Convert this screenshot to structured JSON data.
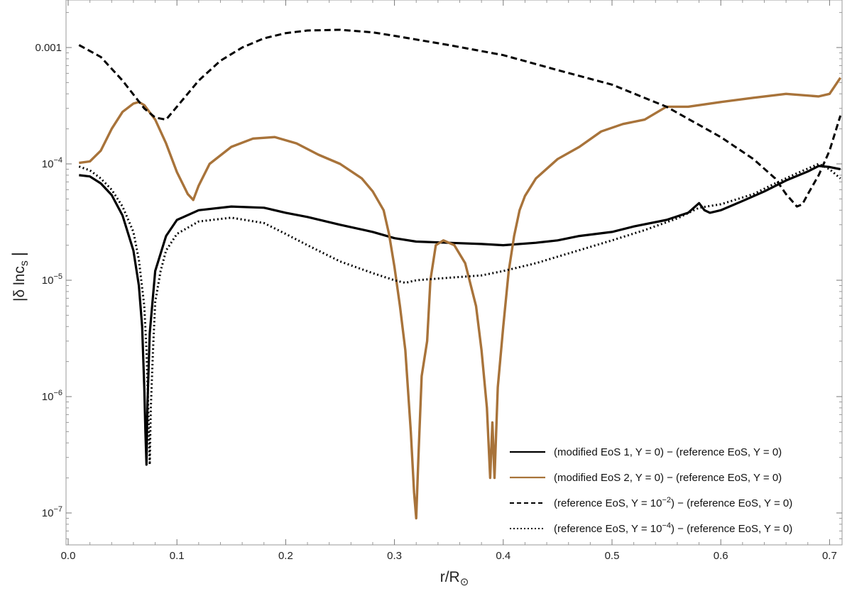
{
  "chart_data": {
    "type": "line",
    "title": "",
    "xlabel": "r/R⊙",
    "ylabel": "|δ lnc_s|",
    "yscale": "log",
    "xlim": [
      0,
      0.72
    ],
    "ylim": [
      5e-08,
      0.0025
    ],
    "grid": false,
    "legend_position": "bottom-right",
    "x_ticks": [
      "0.0",
      "0.1",
      "0.2",
      "0.3",
      "0.4",
      "0.5",
      "0.6",
      "0.7"
    ],
    "y_ticks": [
      {
        "value": 1e-07,
        "label": "10",
        "exp": "−7"
      },
      {
        "value": 1e-06,
        "label": "10",
        "exp": "−6"
      },
      {
        "value": 1e-05,
        "label": "10",
        "exp": "−5"
      },
      {
        "value": 0.0001,
        "label": "10",
        "exp": "−4"
      },
      {
        "value": 0.001,
        "label": "0.001",
        "exp": ""
      }
    ],
    "series": [
      {
        "name": "(modified EoS 1, Y = 0) − (reference EoS,  Y = 0)",
        "color": "#000000",
        "style": "solid",
        "points": [
          [
            0.01,
            8e-05
          ],
          [
            0.02,
            7.8e-05
          ],
          [
            0.03,
            6.8e-05
          ],
          [
            0.04,
            5.4e-05
          ],
          [
            0.05,
            3.6e-05
          ],
          [
            0.06,
            1.8e-05
          ],
          [
            0.065,
            9e-06
          ],
          [
            0.068,
            4e-06
          ],
          [
            0.07,
            1.2e-06
          ],
          [
            0.071,
            5e-07
          ],
          [
            0.072,
            2.6e-07
          ],
          [
            0.073,
            9e-07
          ],
          [
            0.075,
            3.5e-06
          ],
          [
            0.08,
            1.2e-05
          ],
          [
            0.09,
            2.4e-05
          ],
          [
            0.1,
            3.3e-05
          ],
          [
            0.12,
            4e-05
          ],
          [
            0.15,
            4.3e-05
          ],
          [
            0.18,
            4.2e-05
          ],
          [
            0.2,
            3.8e-05
          ],
          [
            0.22,
            3.5e-05
          ],
          [
            0.25,
            3e-05
          ],
          [
            0.28,
            2.6e-05
          ],
          [
            0.3,
            2.3e-05
          ],
          [
            0.32,
            2.15e-05
          ],
          [
            0.35,
            2.1e-05
          ],
          [
            0.38,
            2.05e-05
          ],
          [
            0.4,
            2e-05
          ],
          [
            0.43,
            2.1e-05
          ],
          [
            0.45,
            2.2e-05
          ],
          [
            0.47,
            2.4e-05
          ],
          [
            0.5,
            2.6e-05
          ],
          [
            0.52,
            2.9e-05
          ],
          [
            0.55,
            3.3e-05
          ],
          [
            0.57,
            3.8e-05
          ],
          [
            0.58,
            4.6e-05
          ],
          [
            0.585,
            4e-05
          ],
          [
            0.59,
            3.8e-05
          ],
          [
            0.6,
            4e-05
          ],
          [
            0.62,
            4.8e-05
          ],
          [
            0.64,
            5.8e-05
          ],
          [
            0.66,
            7.2e-05
          ],
          [
            0.68,
            8.6e-05
          ],
          [
            0.69,
            9.6e-05
          ],
          [
            0.7,
            9.4e-05
          ],
          [
            0.71,
            9e-05
          ]
        ]
      },
      {
        "name": "(modified EoS 2, Y = 0) − (reference EoS,  Y = 0)",
        "color": "#a8733a",
        "style": "solid",
        "points": [
          [
            0.01,
            0.000102
          ],
          [
            0.02,
            0.000105
          ],
          [
            0.03,
            0.00013
          ],
          [
            0.04,
            0.0002
          ],
          [
            0.05,
            0.00028
          ],
          [
            0.06,
            0.00033
          ],
          [
            0.065,
            0.00034
          ],
          [
            0.07,
            0.00032
          ],
          [
            0.08,
            0.00024
          ],
          [
            0.09,
            0.00015
          ],
          [
            0.1,
            8.5e-05
          ],
          [
            0.11,
            5.5e-05
          ],
          [
            0.115,
            4.9e-05
          ],
          [
            0.12,
            6.5e-05
          ],
          [
            0.13,
            0.0001
          ],
          [
            0.15,
            0.00014
          ],
          [
            0.17,
            0.000165
          ],
          [
            0.19,
            0.00017
          ],
          [
            0.21,
            0.00015
          ],
          [
            0.23,
            0.00012
          ],
          [
            0.25,
            0.0001
          ],
          [
            0.27,
            7.5e-05
          ],
          [
            0.28,
            5.8e-05
          ],
          [
            0.29,
            4e-05
          ],
          [
            0.295,
            2.5e-05
          ],
          [
            0.3,
            1.3e-05
          ],
          [
            0.305,
            6e-06
          ],
          [
            0.31,
            2.5e-06
          ],
          [
            0.315,
            5e-07
          ],
          [
            0.318,
            1.5e-07
          ],
          [
            0.32,
            9e-08
          ],
          [
            0.322,
            3e-07
          ],
          [
            0.325,
            1.5e-06
          ],
          [
            0.33,
            3e-06
          ],
          [
            0.333,
            1e-05
          ],
          [
            0.338,
            2e-05
          ],
          [
            0.345,
            2.2e-05
          ],
          [
            0.355,
            2e-05
          ],
          [
            0.365,
            1.4e-05
          ],
          [
            0.375,
            6e-06
          ],
          [
            0.38,
            2.5e-06
          ],
          [
            0.385,
            8e-07
          ],
          [
            0.388,
            2e-07
          ],
          [
            0.39,
            6e-07
          ],
          [
            0.392,
            2e-07
          ],
          [
            0.395,
            1.2e-06
          ],
          [
            0.4,
            4e-06
          ],
          [
            0.405,
            1.2e-05
          ],
          [
            0.41,
            2.4e-05
          ],
          [
            0.415,
            4e-05
          ],
          [
            0.42,
            5.3e-05
          ],
          [
            0.43,
            7.5e-05
          ],
          [
            0.45,
            0.00011
          ],
          [
            0.47,
            0.00014
          ],
          [
            0.49,
            0.00019
          ],
          [
            0.51,
            0.00022
          ],
          [
            0.53,
            0.00024
          ],
          [
            0.55,
            0.00031
          ],
          [
            0.57,
            0.00031
          ],
          [
            0.6,
            0.00034
          ],
          [
            0.63,
            0.00037
          ],
          [
            0.66,
            0.0004
          ],
          [
            0.69,
            0.00038
          ],
          [
            0.7,
            0.0004
          ],
          [
            0.71,
            0.00055
          ]
        ]
      },
      {
        "name": "(reference EoS, Y = 10⁻²) − (reference EoS,  Y = 0)",
        "color": "#000000",
        "style": "dashed",
        "points": [
          [
            0.01,
            0.00105
          ],
          [
            0.03,
            0.00083
          ],
          [
            0.05,
            0.00052
          ],
          [
            0.07,
            0.0003
          ],
          [
            0.08,
            0.00025
          ],
          [
            0.09,
            0.00024
          ],
          [
            0.1,
            0.00031
          ],
          [
            0.12,
            0.00052
          ],
          [
            0.14,
            0.00077
          ],
          [
            0.16,
            0.001
          ],
          [
            0.18,
            0.0012
          ],
          [
            0.2,
            0.00133
          ],
          [
            0.22,
            0.0014
          ],
          [
            0.25,
            0.00142
          ],
          [
            0.28,
            0.00135
          ],
          [
            0.3,
            0.00126
          ],
          [
            0.35,
            0.00105
          ],
          [
            0.4,
            0.00086
          ],
          [
            0.45,
            0.00064
          ],
          [
            0.5,
            0.00048
          ],
          [
            0.55,
            0.00031
          ],
          [
            0.6,
            0.00017
          ],
          [
            0.63,
            0.00011
          ],
          [
            0.65,
            7.5e-05
          ],
          [
            0.66,
            5.5e-05
          ],
          [
            0.67,
            4.3e-05
          ],
          [
            0.675,
            4.5e-05
          ],
          [
            0.68,
            5.5e-05
          ],
          [
            0.69,
            8e-05
          ],
          [
            0.7,
            0.00013
          ],
          [
            0.71,
            0.00026
          ]
        ]
      },
      {
        "name": "(reference EoS, Y = 10⁻⁴) − (reference EoS, Y = 0)",
        "color": "#000000",
        "style": "dotted",
        "points": [
          [
            0.01,
            9.5e-05
          ],
          [
            0.02,
            8.8e-05
          ],
          [
            0.03,
            7.5e-05
          ],
          [
            0.04,
            6e-05
          ],
          [
            0.05,
            4.3e-05
          ],
          [
            0.06,
            2.6e-05
          ],
          [
            0.065,
            1.5e-05
          ],
          [
            0.07,
            6e-06
          ],
          [
            0.072,
            2.5e-06
          ],
          [
            0.074,
            6e-07
          ],
          [
            0.075,
            2.6e-07
          ],
          [
            0.076,
            8e-07
          ],
          [
            0.078,
            2.5e-06
          ],
          [
            0.08,
            6.5e-06
          ],
          [
            0.085,
            1.2e-05
          ],
          [
            0.09,
            1.8e-05
          ],
          [
            0.1,
            2.5e-05
          ],
          [
            0.12,
            3.2e-05
          ],
          [
            0.15,
            3.45e-05
          ],
          [
            0.18,
            3.1e-05
          ],
          [
            0.2,
            2.5e-05
          ],
          [
            0.22,
            2e-05
          ],
          [
            0.25,
            1.45e-05
          ],
          [
            0.28,
            1.15e-05
          ],
          [
            0.3,
            1e-05
          ],
          [
            0.31,
            9.5e-06
          ],
          [
            0.32,
            1e-05
          ],
          [
            0.35,
            1.05e-05
          ],
          [
            0.38,
            1.1e-05
          ],
          [
            0.4,
            1.2e-05
          ],
          [
            0.43,
            1.4e-05
          ],
          [
            0.46,
            1.7e-05
          ],
          [
            0.5,
            2.2e-05
          ],
          [
            0.53,
            2.7e-05
          ],
          [
            0.56,
            3.4e-05
          ],
          [
            0.58,
            4.2e-05
          ],
          [
            0.6,
            4.5e-05
          ],
          [
            0.63,
            5.5e-05
          ],
          [
            0.65,
            6.8e-05
          ],
          [
            0.67,
            8.3e-05
          ],
          [
            0.69,
            0.0001
          ],
          [
            0.7,
            9e-05
          ],
          [
            0.71,
            7.5e-05
          ]
        ]
      }
    ]
  }
}
